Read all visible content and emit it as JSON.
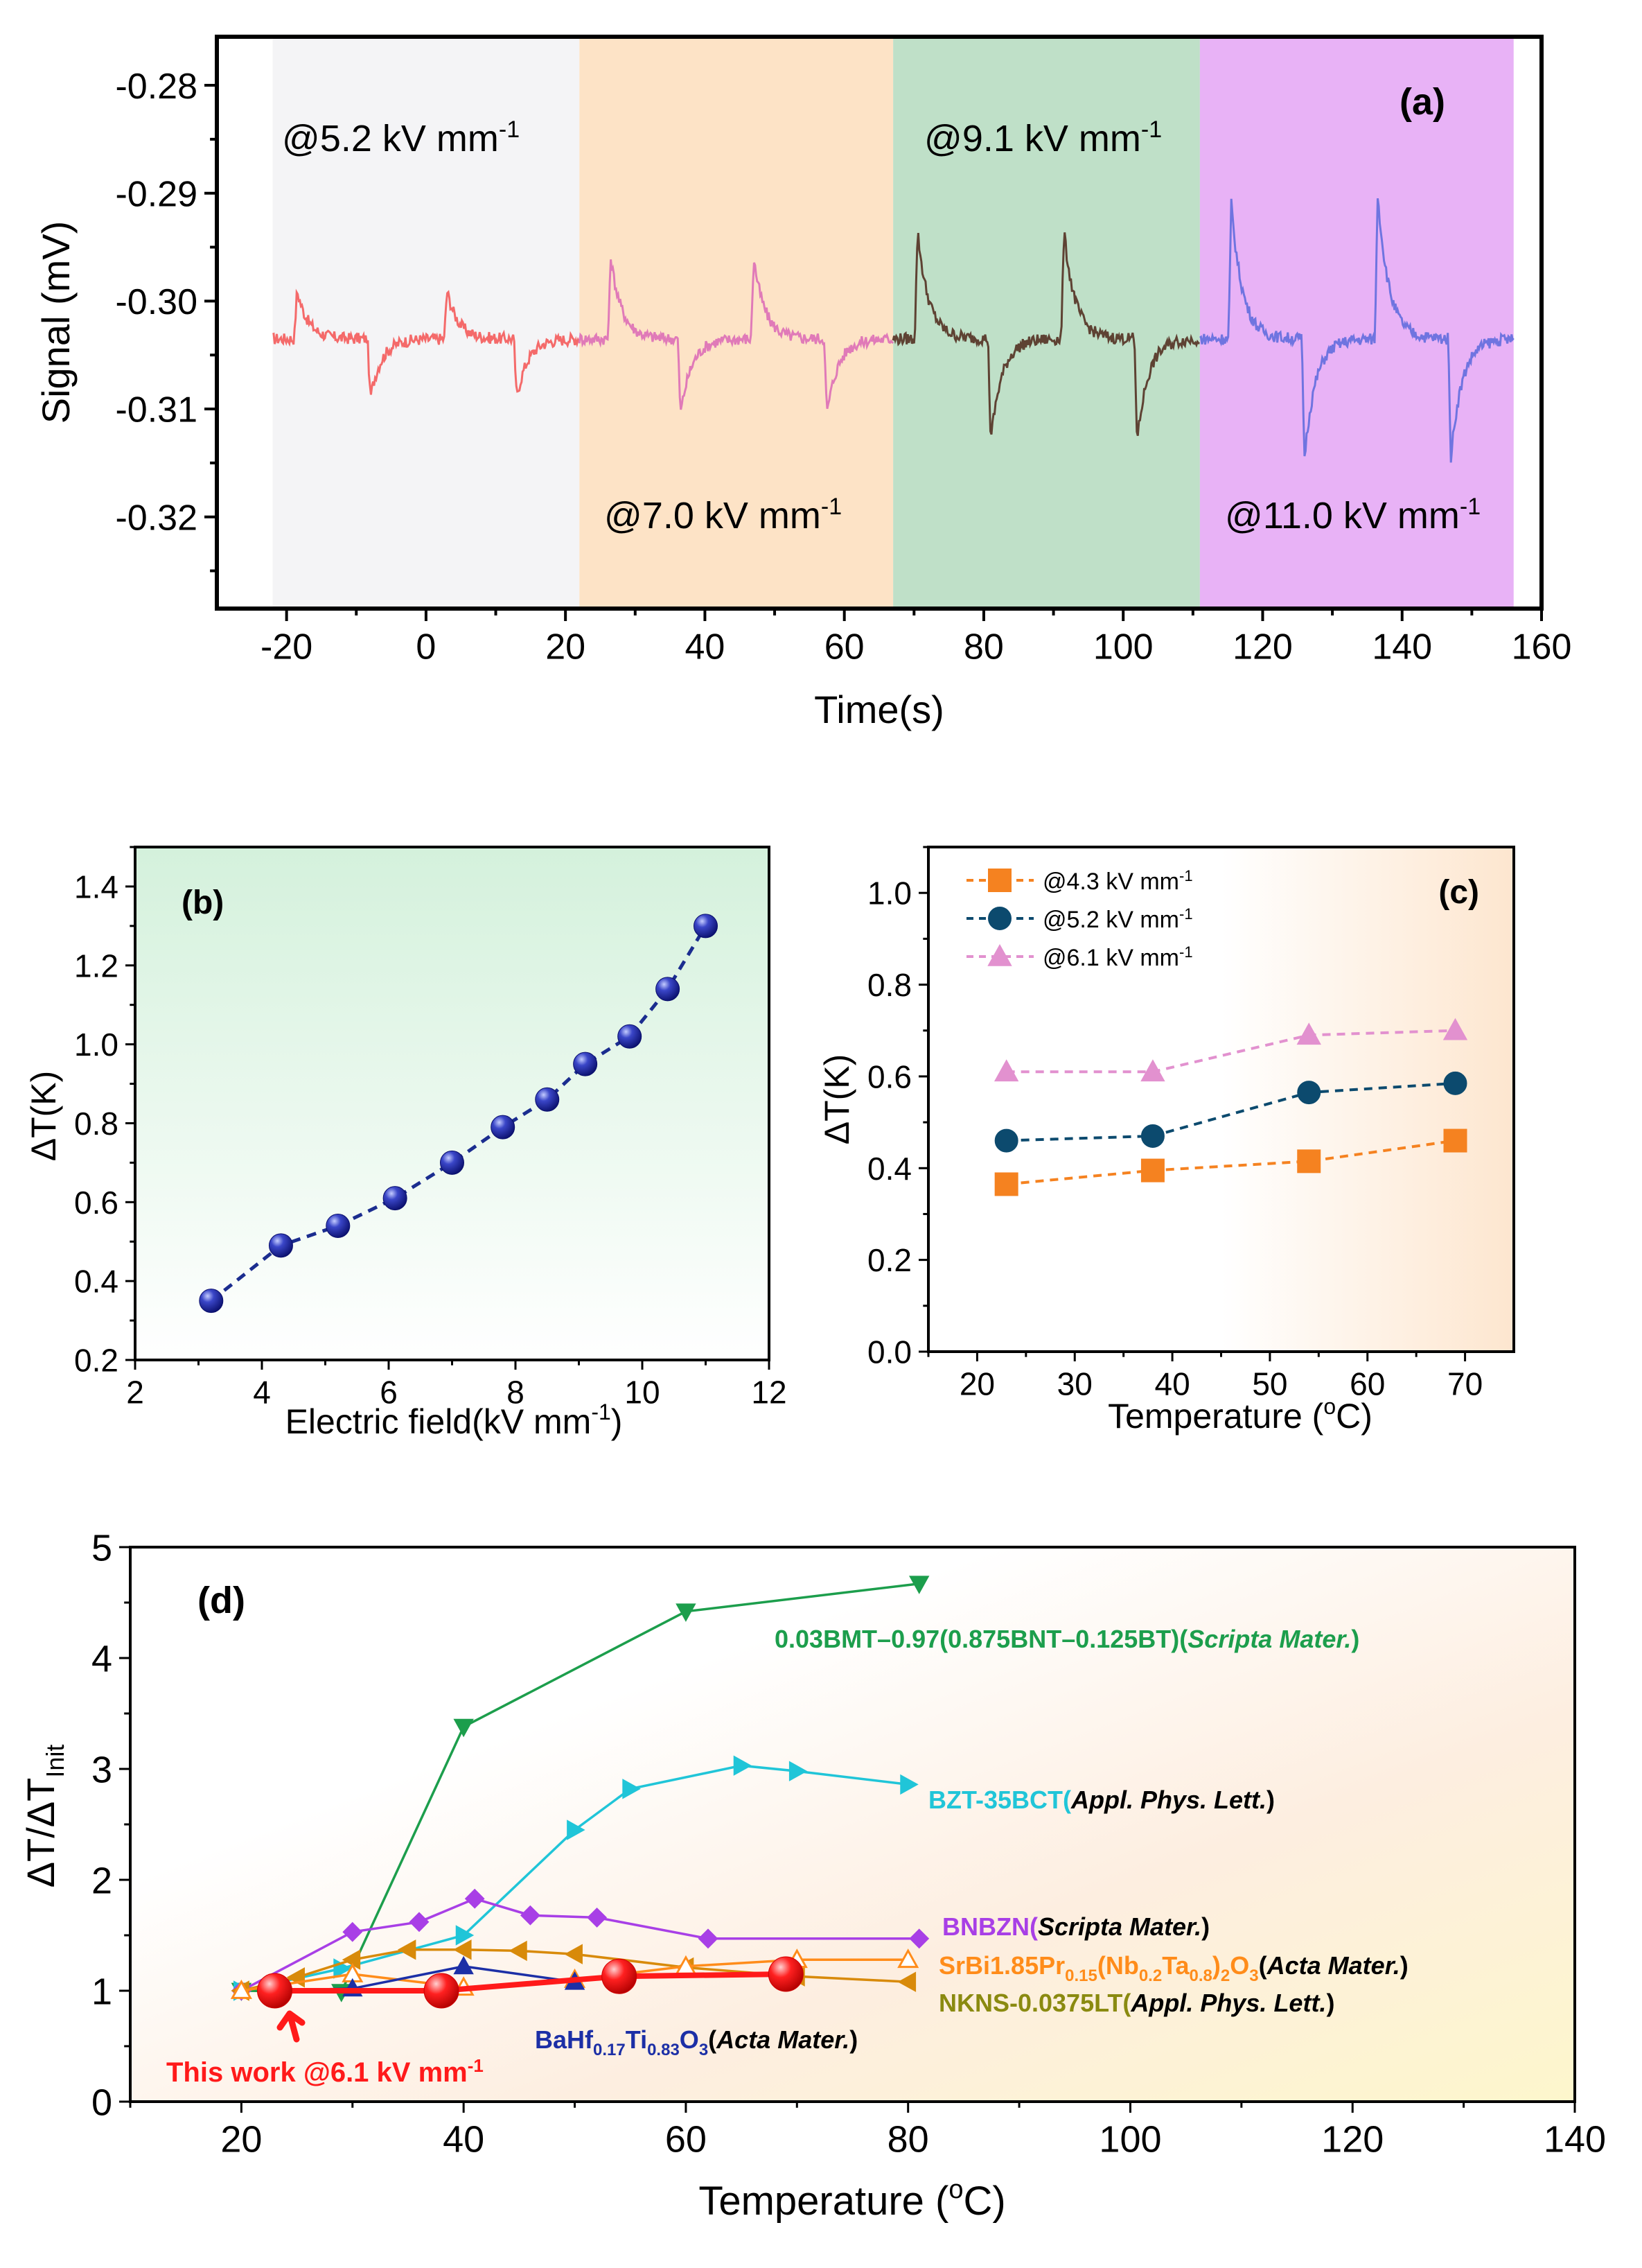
{
  "colors": {
    "a_segments": [
      "#f46a6a",
      "#e07ab8",
      "#5e4233",
      "#6f74e0"
    ],
    "a_bands": [
      "#f4f4f6",
      "#fde3c6",
      "#bfe0c8",
      "#e8b2f6"
    ],
    "b_line": "#1b2d8f",
    "c_series": [
      "#f58220",
      "#0c4a6e",
      "#e291cf"
    ],
    "d_series": [
      "#ff1a1a",
      "#1c2fa6",
      "#ff8c1a",
      "#d88a0a",
      "#a83fe6",
      "#20c5d8",
      "#1c9e4c"
    ]
  },
  "chart_data": [
    {
      "panel": "a",
      "type": "line",
      "panel_label": "(a)",
      "xlabel": "Time(s)",
      "ylabel": "Signal (mV)",
      "xlim": [
        -30,
        160
      ],
      "ylim": [
        -0.3285,
        -0.2755
      ],
      "xticks": [
        -20,
        0,
        20,
        40,
        60,
        80,
        100,
        120,
        140,
        160
      ],
      "yticks": [
        -0.28,
        -0.29,
        -0.3,
        -0.31,
        -0.32
      ],
      "ytick_labels": [
        "-0.28",
        "-0.29",
        "-0.30",
        "-0.31",
        "-0.32"
      ],
      "baseline": -0.3035,
      "segments": [
        {
          "name": "@5.2 kV mm",
          "exp": "-1",
          "x_range": [
            -22,
            22
          ],
          "pulses": [
            {
              "t": -18.5,
              "amp": 0.0045
            },
            {
              "t": -8.0,
              "amp": -0.0055
            },
            {
              "t": 3.0,
              "amp": 0.0045
            },
            {
              "t": 13.0,
              "amp": -0.0055
            }
          ]
        },
        {
          "name": "@7.0 kV mm",
          "exp": "-1",
          "x_range": [
            22,
            67
          ],
          "pulses": [
            {
              "t": 26.5,
              "amp": 0.0075
            },
            {
              "t": 36.5,
              "amp": -0.007
            },
            {
              "t": 47.0,
              "amp": 0.0075
            },
            {
              "t": 57.5,
              "amp": -0.007
            }
          ]
        },
        {
          "name": "@9.1 kV mm",
          "exp": "-1",
          "x_range": [
            67,
            111
          ],
          "pulses": [
            {
              "t": 70.5,
              "amp": 0.01
            },
            {
              "t": 81.0,
              "amp": -0.0095
            },
            {
              "t": 91.5,
              "amp": 0.01
            },
            {
              "t": 102.0,
              "amp": -0.0095
            }
          ]
        },
        {
          "name": "@11.0 kV mm",
          "exp": "-1",
          "x_range": [
            111,
            156
          ],
          "pulses": [
            {
              "t": 115.5,
              "amp": 0.0125
            },
            {
              "t": 126.0,
              "amp": -0.011
            },
            {
              "t": 136.5,
              "amp": 0.0135
            },
            {
              "t": 147.0,
              "amp": -0.011
            }
          ]
        }
      ]
    },
    {
      "panel": "b",
      "type": "line",
      "panel_label": "(b)",
      "xlabel": "Electric field(kV mm",
      "xlabel_exp": "-1",
      "xlabel_end": ")",
      "ylabel": "ΔT(K)",
      "xlim": [
        2,
        12
      ],
      "ylim": [
        0.2,
        1.5
      ],
      "xticks": [
        2,
        4,
        6,
        8,
        10,
        12
      ],
      "yticks": [
        0.2,
        0.4,
        0.6,
        0.8,
        1.0,
        1.2,
        1.4
      ],
      "ytick_labels": [
        "0.2",
        "0.4",
        "0.6",
        "0.8",
        "1.0",
        "1.2",
        "1.4"
      ],
      "x": [
        3.2,
        4.3,
        5.2,
        6.1,
        7.0,
        7.8,
        8.5,
        9.1,
        9.8,
        10.4,
        11.0
      ],
      "y": [
        0.35,
        0.49,
        0.54,
        0.61,
        0.7,
        0.79,
        0.86,
        0.95,
        1.02,
        1.14,
        1.3
      ]
    },
    {
      "panel": "c",
      "type": "line",
      "panel_label": "(c)",
      "xlabel": "Temperature (",
      "xlabel_sup": "o",
      "xlabel_end": "C)",
      "ylabel": "ΔT(K)",
      "xlim": [
        15,
        75
      ],
      "ylim": [
        0.0,
        1.1
      ],
      "xticks": [
        20,
        30,
        40,
        50,
        60,
        70
      ],
      "yticks": [
        0.0,
        0.2,
        0.4,
        0.6,
        0.8,
        1.0
      ],
      "ytick_labels": [
        "0.0",
        "0.2",
        "0.4",
        "0.6",
        "0.8",
        "1.0"
      ],
      "x": [
        23,
        38,
        54,
        69
      ],
      "series": [
        {
          "name": "@4.3 kV mm",
          "exp": "-1",
          "marker": "square",
          "values": [
            0.365,
            0.395,
            0.415,
            0.46
          ]
        },
        {
          "name": "@5.2 kV mm",
          "exp": "-1",
          "marker": "circle",
          "values": [
            0.46,
            0.47,
            0.565,
            0.585
          ]
        },
        {
          "name": "@6.1 kV mm",
          "exp": "-1",
          "marker": "triangle-up",
          "values": [
            0.61,
            0.61,
            0.69,
            0.7
          ]
        }
      ]
    },
    {
      "panel": "d",
      "type": "line",
      "panel_label": "(d)",
      "xlabel": "Temperature (",
      "xlabel_sup": "o",
      "xlabel_end": "C)",
      "ylabel": "ΔT/ΔT",
      "ylabel_sub": "Init",
      "xlim": [
        10,
        140
      ],
      "ylim": [
        0,
        5
      ],
      "xticks": [
        20,
        40,
        60,
        80,
        100,
        120,
        140
      ],
      "yticks": [
        0,
        1,
        2,
        3,
        4,
        5
      ],
      "annotation": "This work @6.1 kV mm",
      "annotation_exp": "-1",
      "series": [
        {
          "name": "This work @6.1 kV mm-1",
          "marker": "big-circle",
          "x": [
            23,
            38,
            54,
            69
          ],
          "y": [
            1.0,
            1.0,
            1.13,
            1.15
          ]
        },
        {
          "name": "BaHf0.17Ti0.83O3(Acta Mater.)",
          "marker": "triangle-up",
          "x": [
            23,
            30,
            40,
            50
          ],
          "y": [
            1.0,
            1.02,
            1.22,
            1.08
          ]
        },
        {
          "name": "SrBi1.85Pr0.15(Nb0.2Ta0.8)2O3(Acta Mater.)",
          "marker": "open-triangle-up",
          "x": [
            20,
            30,
            40,
            50,
            60,
            70,
            80
          ],
          "y": [
            1.0,
            1.15,
            1.03,
            1.1,
            1.22,
            1.28,
            1.28
          ]
        },
        {
          "name": "NKNS-0.0375LT(Appl. Phys. Lett.)",
          "marker": "triangle-left",
          "x": [
            20,
            25,
            30,
            35,
            40,
            45,
            50,
            60,
            70,
            80
          ],
          "y": [
            1.0,
            1.12,
            1.28,
            1.37,
            1.37,
            1.36,
            1.33,
            1.21,
            1.13,
            1.08
          ]
        },
        {
          "name": "BNBZN(Scripta Mater.)",
          "marker": "diamond",
          "x": [
            20,
            30,
            36,
            41,
            46,
            52,
            62,
            81
          ],
          "y": [
            1.0,
            1.53,
            1.62,
            1.83,
            1.68,
            1.66,
            1.47,
            1.47
          ]
        },
        {
          "name": "BZT-35BCT(Appl. Phys. Lett.)",
          "marker": "triangle-right",
          "x": [
            20,
            29,
            40,
            50,
            55,
            65,
            70,
            80
          ],
          "y": [
            1.0,
            1.2,
            1.5,
            2.45,
            2.82,
            3.03,
            2.98,
            2.86
          ]
        },
        {
          "name": "0.03BMT–0.97(0.875BNT–0.125BT)(Scripta Mater.)",
          "marker": "triangle-down",
          "x": [
            20,
            29,
            40,
            60,
            81
          ],
          "y": [
            1.0,
            0.99,
            3.38,
            4.42,
            4.67
          ]
        }
      ],
      "labels": {
        "bmt": {
          "a": "0.03BMT–0.97(0.875BNT–0.125BT)(",
          "b": "Scripta Mater.",
          "c": ")"
        },
        "bzt": {
          "a": "BZT-35BCT(",
          "b": "Appl. Phys. Lett.",
          "c": ")"
        },
        "bnbzn": {
          "a": "BNBZN(",
          "b": "Scripta Mater.",
          "c": ")"
        },
        "srbi": {
          "a": "SrBi1.85Pr",
          "s1": "0.15",
          "b": "(Nb",
          "s2": "0.2",
          "c": "Ta",
          "s3": "0.8",
          "d": ")",
          "s4": "2",
          "e": "O",
          "s5": "3",
          "f": "(",
          "g": "Acta Mater.",
          "h": ")"
        },
        "nkns": {
          "a": "NKNS-0.0375LT(",
          "b": "Appl. Phys. Lett.",
          "c": ")"
        },
        "bahf": {
          "a": "BaHf",
          "s1": "0.17",
          "b": "Ti",
          "s2": "0.83",
          "c": "O",
          "s3": "3",
          "d": "(",
          "e": "Acta Mater.",
          "f": ")"
        }
      }
    }
  ]
}
